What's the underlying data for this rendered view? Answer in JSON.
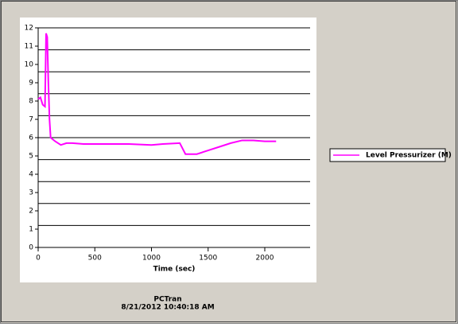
{
  "chart_data": {
    "type": "line",
    "x_label": "Time (sec)",
    "x": [
      0,
      20,
      40,
      60,
      70,
      80,
      90,
      100,
      110,
      150,
      200,
      250,
      300,
      400,
      600,
      800,
      1000,
      1100,
      1250,
      1300,
      1400,
      1500,
      1600,
      1700,
      1800,
      1900,
      2000,
      2100
    ],
    "series": [
      {
        "name": "Level Pressurizer (M)",
        "color": "#ff00ff",
        "values": [
          8.1,
          8.2,
          7.8,
          7.7,
          11.7,
          11.5,
          9,
          7,
          6,
          5.8,
          5.6,
          5.7,
          5.7,
          5.65,
          5.65,
          5.65,
          5.6,
          5.65,
          5.7,
          5.1,
          5.1,
          5.3,
          5.5,
          5.7,
          5.85,
          5.85,
          5.8,
          5.8
        ]
      }
    ],
    "xlim": [
      0,
      2400
    ],
    "xticks": [
      0,
      500,
      1000,
      1500,
      2000
    ],
    "ylim": [
      0,
      12
    ],
    "yticks": [
      0,
      1,
      2,
      3,
      4,
      5,
      6,
      7,
      8,
      9,
      10,
      11,
      12
    ],
    "ygrid": [
      0,
      1.2,
      2.4,
      3.6,
      4.8,
      6,
      7.2,
      8.4,
      9.6,
      10.8,
      12
    ],
    "legend": "right"
  },
  "footer": {
    "app": "PCTran",
    "timestamp": "8/21/2012 10:40:18 AM"
  }
}
